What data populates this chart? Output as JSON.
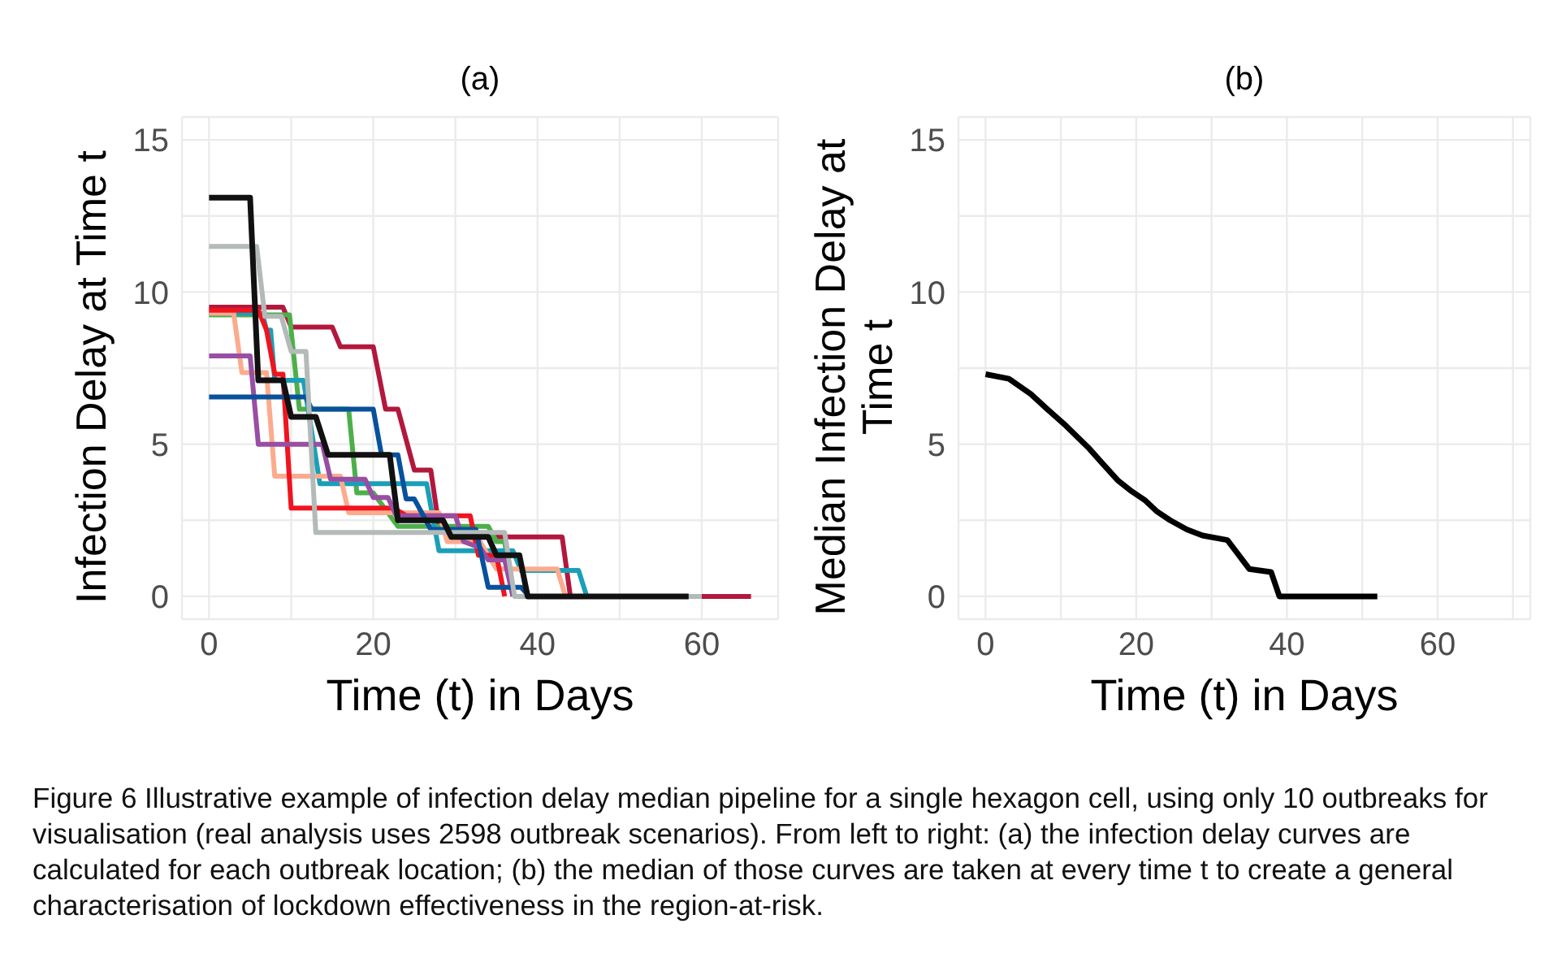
{
  "chart_data": [
    {
      "type": "line",
      "title": "(a)",
      "xlabel": "Time (t) in Days",
      "ylabel": "Infection Delay at Time t",
      "xlim": [
        -3.3,
        69.3
      ],
      "ylim": [
        -0.75,
        15.75
      ],
      "xticks": [
        0,
        {
          "value": 10,
          "label": null
        },
        20,
        {
          "value": 30,
          "label": null
        },
        40,
        {
          "value": 50,
          "label": null
        },
        60
      ],
      "yticks": [
        0,
        {
          "value": 2.5,
          "label": null
        },
        5,
        {
          "value": 7.5,
          "label": null
        },
        10,
        {
          "value": 12.5,
          "label": null
        },
        15
      ],
      "grid": true,
      "series": [
        {
          "color": "#b2183d",
          "x": [
            0,
            9,
            10,
            15,
            16,
            20,
            21.5,
            23,
            25,
            27,
            28,
            35,
            43,
            44,
            66
          ],
          "values": [
            9.5,
            9.5,
            8.85,
            8.85,
            8.2,
            8.2,
            6.15,
            6.15,
            4.15,
            4.15,
            2.3,
            1.95,
            1.95,
            0,
            0
          ]
        },
        {
          "color": "#4daf4a",
          "x": [
            0,
            9.8,
            11,
            17,
            18,
            20,
            23,
            34,
            35,
            36,
            37
          ],
          "values": [
            9.25,
            9.25,
            6.15,
            6.15,
            3.4,
            3.4,
            2.3,
            2.3,
            1.8,
            1.8,
            0
          ]
        },
        {
          "color": "#1b9fb8",
          "x": [
            0,
            6.5,
            7,
            7.5,
            8,
            11.5,
            13.5,
            26.5,
            28,
            37,
            38,
            45,
            46
          ],
          "values": [
            9.3,
            9.3,
            8.75,
            8.75,
            7.1,
            7.1,
            3.7,
            3.7,
            1.5,
            1.5,
            0.85,
            0.85,
            0
          ]
        },
        {
          "color": "#fcab8e",
          "x": [
            0,
            3,
            4,
            7,
            8,
            16,
            17,
            28,
            29,
            33,
            35,
            42.4,
            43.4
          ],
          "values": [
            9.3,
            9.3,
            7.35,
            7.35,
            3.95,
            3.95,
            2.75,
            2.75,
            1.8,
            1.8,
            0.9,
            0.9,
            0
          ]
        },
        {
          "color": "#f0141e",
          "x": [
            0,
            6,
            7,
            8,
            9,
            10,
            22.5,
            24,
            31.8,
            32.8,
            35,
            36
          ],
          "values": [
            9.4,
            9.4,
            8.75,
            7.3,
            7.3,
            2.9,
            2.9,
            2.65,
            2.65,
            1.35,
            1.35,
            0
          ]
        },
        {
          "color": "#984ea3",
          "x": [
            0,
            5,
            6,
            13.8,
            14.8,
            19,
            20,
            21.8,
            22.8,
            30,
            31,
            33,
            34,
            36,
            37
          ],
          "values": [
            7.9,
            7.9,
            5,
            5,
            3.85,
            3.85,
            3.25,
            3.25,
            2.65,
            2.65,
            1.8,
            1.6,
            1.2,
            1.2,
            0
          ]
        },
        {
          "color": "#08519c",
          "x": [
            0,
            11.8,
            12.5,
            20,
            21,
            23,
            24,
            25,
            27,
            32.5,
            34,
            38,
            39
          ],
          "values": [
            6.55,
            6.55,
            6.15,
            6.15,
            4.65,
            4.65,
            3.2,
            3.2,
            2.2,
            2.2,
            0.3,
            0.3,
            0
          ]
        },
        {
          "color": "#b3bab8",
          "x": [
            0,
            5.8,
            6.8,
            8.8,
            10,
            11.8,
            13,
            36,
            37.2,
            60
          ],
          "values": [
            11.5,
            11.5,
            9.2,
            9.2,
            8.05,
            8.05,
            2.1,
            2.1,
            0,
            0
          ]
        },
        {
          "color": "#111111",
          "x": [
            0,
            5,
            6,
            9,
            10,
            13,
            14.5,
            22,
            23,
            28.5,
            29.5,
            34,
            35,
            37.8,
            38.8,
            58.4
          ],
          "values": [
            13.1,
            13.1,
            7.1,
            7.1,
            5.9,
            5.9,
            4.65,
            4.65,
            2.5,
            2.5,
            1.95,
            1.95,
            1.35,
            1.35,
            0,
            0
          ]
        }
      ],
      "annotations": [
        "Figure 6  Illustrative example of infection delay median pipeline for a single hexagon cell, using only 10 outbreaks for visualisation (real analysis uses 2598 outbreak scenarios). From left to right: (a) the infection delay curves are calculated for each outbreak location; (b) the median of those curves are taken at every time t to create a general characterisation of lockdown effectiveness in the region-at-risk."
      ]
    },
    {
      "type": "line",
      "title": "(b)",
      "xlabel": "Time (t) in Days",
      "ylabel": "Median Infection Delay at Time t",
      "xlim": [
        -3.6,
        72.3
      ],
      "ylim": [
        -0.75,
        15.75
      ],
      "xticks": [
        0,
        {
          "value": 10,
          "label": null
        },
        20,
        {
          "value": 30,
          "label": null
        },
        40,
        {
          "value": 50,
          "label": null
        },
        60,
        {
          "value": 70,
          "label": null
        }
      ],
      "yticks": [
        0,
        {
          "value": 2.5,
          "label": null
        },
        5,
        {
          "value": 7.5,
          "label": null
        },
        10,
        {
          "value": 12.5,
          "label": null
        },
        15
      ],
      "grid": true,
      "series": [
        {
          "color": "#000000",
          "x": [
            0,
            3.1,
            6,
            8.2,
            10.7,
            13.6,
            15.4,
            17.6,
            19.4,
            21.2,
            22.7,
            24.5,
            26.7,
            28.8,
            32.1,
            35,
            37.9,
            39,
            52
          ],
          "values": [
            7.3,
            7.15,
            6.65,
            6.15,
            5.6,
            4.9,
            4.4,
            3.8,
            3.45,
            3.15,
            2.8,
            2.5,
            2.2,
            2,
            1.85,
            0.9,
            0.8,
            0,
            0
          ]
        }
      ]
    }
  ]
}
